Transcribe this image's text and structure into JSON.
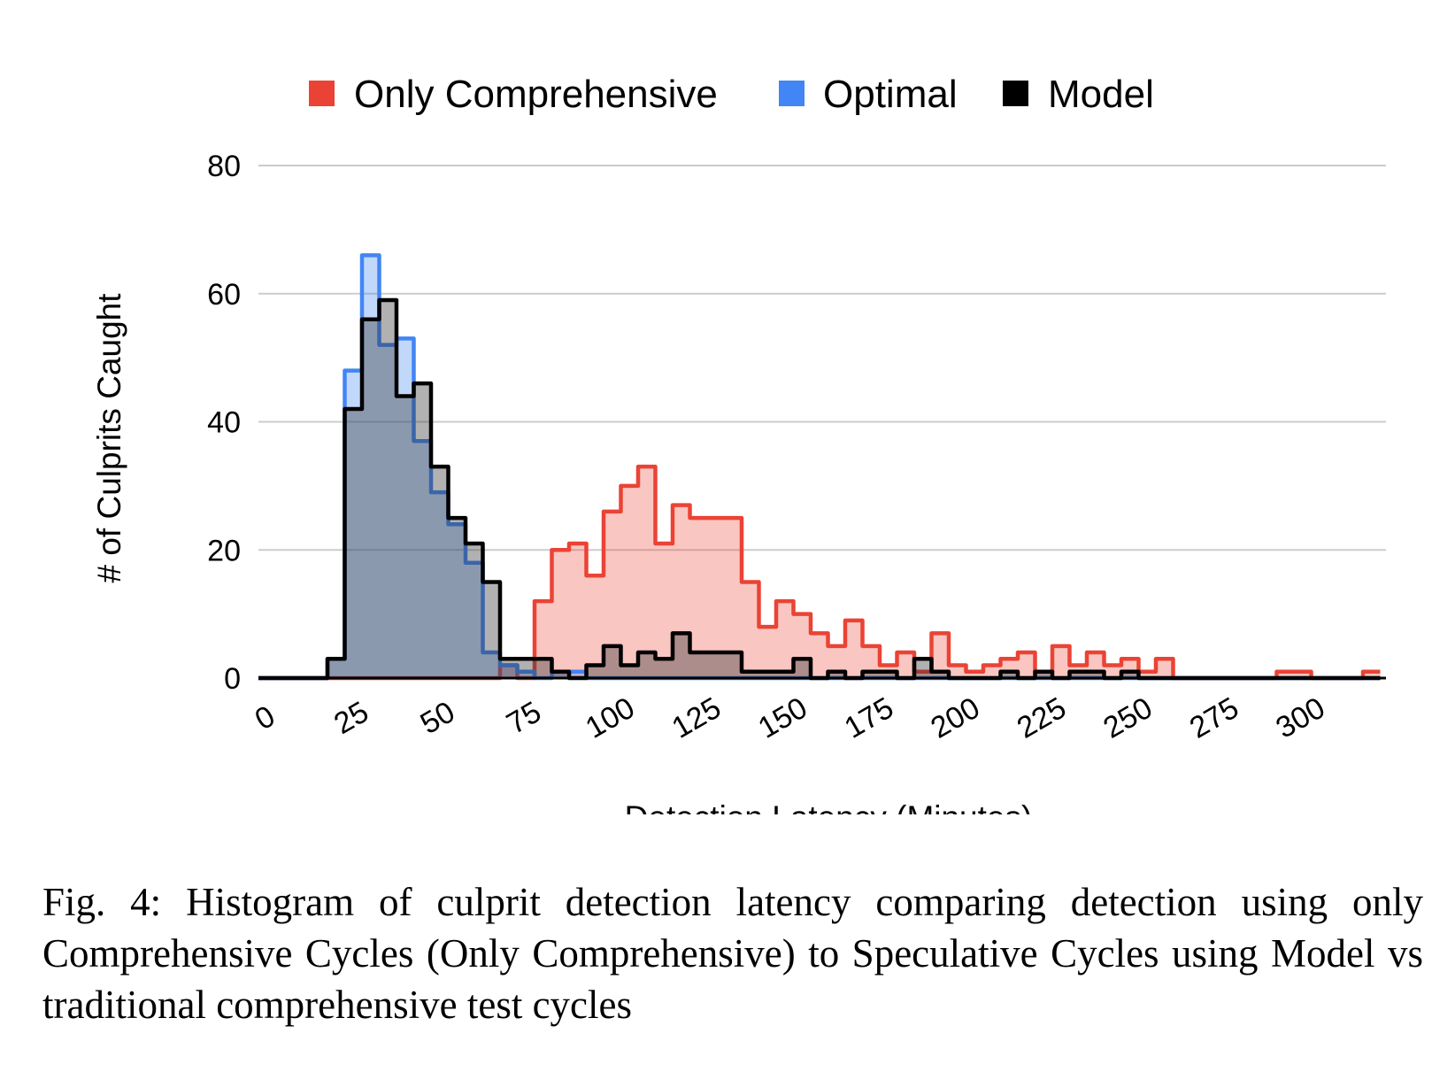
{
  "chart_data": {
    "type": "area",
    "title": "",
    "xlabel": "Detection Latency (Minutes)",
    "ylabel": "# of Culprits Caught",
    "ylim": [
      0,
      80
    ],
    "xlim": [
      0,
      325
    ],
    "grid": true,
    "legend_position": "top",
    "y_ticks": [
      "0",
      "20",
      "40",
      "60",
      "80"
    ],
    "x_ticks": [
      "0",
      "25",
      "50",
      "75",
      "100",
      "125",
      "150",
      "175",
      "200",
      "225",
      "250",
      "275",
      "300"
    ],
    "bin_width": 5,
    "bins_start": [
      0,
      5,
      10,
      15,
      20,
      25,
      30,
      35,
      40,
      45,
      50,
      55,
      60,
      65,
      70,
      75,
      80,
      85,
      90,
      95,
      100,
      105,
      110,
      115,
      120,
      125,
      130,
      135,
      140,
      145,
      150,
      155,
      160,
      165,
      170,
      175,
      180,
      185,
      190,
      195,
      200,
      205,
      210,
      215,
      220,
      225,
      230,
      235,
      240,
      245,
      250,
      255,
      260,
      265,
      270,
      275,
      280,
      285,
      290,
      295,
      300,
      305,
      310,
      315,
      320
    ],
    "series": [
      {
        "name": "Only Comprehensive",
        "color": "#ea4335",
        "values": [
          0,
          0,
          0,
          0,
          0,
          0,
          0,
          0,
          0,
          0,
          0,
          0,
          0,
          0,
          2,
          0,
          12,
          20,
          21,
          16,
          26,
          30,
          33,
          21,
          27,
          25,
          25,
          25,
          15,
          8,
          12,
          10,
          7,
          5,
          9,
          5,
          2,
          4,
          1,
          7,
          2,
          1,
          2,
          3,
          4,
          1,
          5,
          2,
          4,
          2,
          3,
          1,
          3,
          0,
          0,
          0,
          0,
          0,
          0,
          1,
          1,
          0,
          0,
          0,
          1
        ]
      },
      {
        "name": "Optimal",
        "color": "#4285f4",
        "values": [
          0,
          0,
          0,
          0,
          3,
          48,
          66,
          52,
          53,
          37,
          29,
          24,
          18,
          4,
          2,
          1,
          0,
          1,
          1,
          0,
          0,
          0,
          0,
          0,
          0,
          0,
          0,
          0,
          0,
          0,
          0,
          0,
          0,
          0,
          0,
          0,
          0,
          0,
          0,
          0,
          0,
          0,
          0,
          0,
          0,
          0,
          0,
          0,
          0,
          0,
          0,
          0,
          0,
          0,
          0,
          0,
          0,
          0,
          0,
          0,
          0,
          0,
          0,
          0,
          0
        ]
      },
      {
        "name": "Model",
        "color": "#000000",
        "values": [
          0,
          0,
          0,
          0,
          3,
          42,
          56,
          59,
          44,
          46,
          33,
          25,
          21,
          15,
          3,
          3,
          3,
          1,
          0,
          2,
          5,
          2,
          4,
          3,
          7,
          4,
          4,
          4,
          1,
          1,
          1,
          3,
          0,
          1,
          0,
          1,
          1,
          0,
          3,
          1,
          0,
          0,
          0,
          1,
          0,
          1,
          0,
          1,
          1,
          0,
          1,
          0,
          0,
          0,
          0,
          0,
          0,
          0,
          0,
          0,
          0,
          0,
          0,
          0,
          0
        ]
      }
    ]
  },
  "caption": "Fig. 4: Histogram of culprit detection latency comparing detection using only Comprehensive Cycles (Only Comprehensive) to Speculative Cycles using Model vs traditional comprehensive test cycles"
}
